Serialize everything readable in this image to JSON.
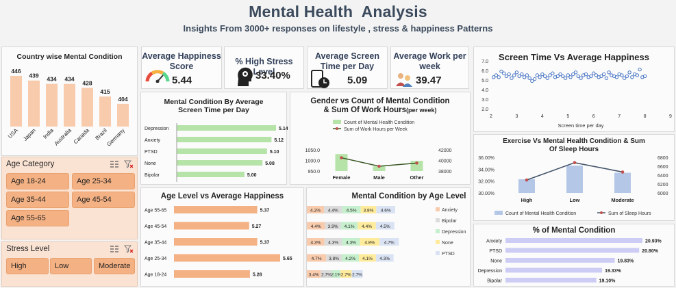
{
  "header": {
    "title": "Mental Health  Analysis",
    "subtitle": "Insights From 3000+ responses on lifestyle , stress & happiness Patterns"
  },
  "kpis": [
    {
      "label": "Average Happiness Score",
      "value": "5.44",
      "icon": "gauge-icon"
    },
    {
      "label": "% High Stress Level",
      "value": "33.40%",
      "icon": "head-gears-icon"
    },
    {
      "label": "Average Screen Time per Day",
      "value": "5.09",
      "icon": "tablet-clock-icon"
    },
    {
      "label": "Average Work per week",
      "value": "39.47",
      "icon": "workers-icon"
    }
  ],
  "colors": {
    "orange": "#f8cbad",
    "orange_dark": "#f4b183",
    "green": "#c6efce",
    "green_bar": "#b6e3a8",
    "blue": "#b4c7e7",
    "purple": "#ccccf5",
    "line": "#385723"
  },
  "slicers": {
    "age": {
      "title": "Age Category",
      "items": [
        "Age 18-24",
        "Age 25-34",
        "Age 35-44",
        "Age 45-54",
        "Age 55-65"
      ]
    },
    "stress": {
      "title": "Stress Level",
      "items": [
        "High",
        "Low",
        "Moderate"
      ]
    }
  },
  "chart_data": [
    {
      "id": "country",
      "type": "bar",
      "title": "Country wise Mental Condition",
      "categories": [
        "USA",
        "Japan",
        "India",
        "Australia",
        "Canada",
        "Brazil",
        "Germany"
      ],
      "values": [
        446,
        439,
        434,
        434,
        428,
        415,
        404
      ]
    },
    {
      "id": "screen_happy",
      "type": "scatter",
      "title": "Screen Time Vs Average Happiness",
      "xlabel": "Screen time per day",
      "xlim": [
        2,
        9
      ],
      "ylim": [
        2.0,
        7.0
      ],
      "xticks": [
        "2",
        "3",
        "4",
        "5",
        "6",
        "7",
        "8",
        "9"
      ],
      "yticks": [
        "2.0",
        "3.0",
        "4.0",
        "5.0",
        "6.0",
        "7.0"
      ],
      "x": [
        2.1,
        2.2,
        2.3,
        2.4,
        2.5,
        2.6,
        2.7,
        2.8,
        2.9,
        3.0,
        3.1,
        3.2,
        3.3,
        3.4,
        3.5,
        3.6,
        3.7,
        3.8,
        3.9,
        4.0,
        4.1,
        4.2,
        4.3,
        4.4,
        4.5,
        4.6,
        4.7,
        4.8,
        4.9,
        5.0,
        5.1,
        5.2,
        5.3,
        5.4,
        5.5,
        5.6,
        5.7,
        5.8,
        5.9,
        6.0,
        6.1,
        6.2,
        6.3,
        6.4,
        6.5,
        6.6,
        6.7,
        6.8,
        6.9,
        7.0,
        7.1,
        7.2,
        7.3,
        7.4,
        7.5,
        7.6,
        7.7,
        7.8,
        7.9,
        8.0
      ],
      "y": [
        5.3,
        5.5,
        5.3,
        5.9,
        5.7,
        5.4,
        5.6,
        5.2,
        5.5,
        5.8,
        5.4,
        5.6,
        5.3,
        5.5,
        5.2,
        4.9,
        5.1,
        5.5,
        5.3,
        5.6,
        5.4,
        5.2,
        5.5,
        5.7,
        5.3,
        5.4,
        5.6,
        5.4,
        5.2,
        5.5,
        5.3,
        5.6,
        5.8,
        5.4,
        5.2,
        5.5,
        5.6,
        5.3,
        5.4,
        5.7,
        5.5,
        5.3,
        5.4,
        5.6,
        5.2,
        5.8,
        5.5,
        5.4,
        5.3,
        5.6,
        5.5,
        5.2,
        5.4,
        5.8,
        5.3,
        5.6,
        5.5,
        6.1,
        5.3,
        5.4
      ]
    },
    {
      "id": "screen_condition",
      "type": "bar",
      "title": "Mental Condition By Average Screen Time per Day",
      "categories": [
        "Depression",
        "Anxiety",
        "PTSD",
        "None",
        "Bipolar"
      ],
      "values": [
        5.14,
        5.12,
        5.1,
        5.08,
        5.0
      ],
      "labels": [
        "5.14",
        "5.12",
        "5.10",
        "5.08",
        "5.00"
      ]
    },
    {
      "id": "gender",
      "type": "bar",
      "title": "Gender vs Count of Mental Condition & Sum Of Work  Hours",
      "title_suffix": "(per week)",
      "categories": [
        "Female",
        "Male",
        "Other"
      ],
      "series": [
        {
          "name": "Count of Mental Health Condition",
          "values": [
            1030,
            972,
            998
          ]
        },
        {
          "name": "Sum of Work Hours per Week",
          "values": [
            40500,
            38900,
            39500
          ]
        }
      ],
      "ylim": [
        950,
        1050
      ],
      "y2lim": [
        38000,
        42000
      ],
      "yticks": [
        "950.0",
        "1000.0",
        "1050.0"
      ],
      "y2ticks": [
        "38000",
        "40000",
        "42000"
      ]
    },
    {
      "id": "exercise",
      "type": "bar",
      "title": "Exercise Vs Mental Health Condition & Sum Of Sleep Hours",
      "categories": [
        "High",
        "Low",
        "Moderate"
      ],
      "series": [
        {
          "name": "Count of Mental Health Condition",
          "values": [
            32.3,
            34.6,
            33.4
          ]
        },
        {
          "name": "Sum of Sleep Hours",
          "values": [
            6290,
            6680,
            6470
          ]
        }
      ],
      "ylim": [
        30,
        36
      ],
      "y2lim": [
        6000,
        6800
      ],
      "yticks": [
        "30.00%",
        "32.00%",
        "34.00%",
        "36.00%"
      ],
      "y2ticks": [
        "6000",
        "6200",
        "6400",
        "6600",
        "6800"
      ]
    },
    {
      "id": "age_happy",
      "type": "bar",
      "title": "Age Level vs Average Happiness",
      "categories": [
        "Age 55-65",
        "Age 45-54",
        "Age 35-44",
        "Age 25-34",
        "Age 18-24"
      ],
      "values": [
        5.37,
        5.27,
        5.37,
        5.65,
        5.28
      ],
      "labels": [
        "5.37",
        "5.27",
        "5.37",
        "5.65",
        "5.28"
      ]
    },
    {
      "id": "age_condition",
      "type": "bar",
      "title": "Mental Condition by Age Level",
      "rows": [
        "Age 55-65",
        "Age 45-54",
        "Age 35-44",
        "Age 25-34",
        "Age 18-24"
      ],
      "series": [
        {
          "name": "Anxiety",
          "values": [
            4.2,
            4.4,
            4.3,
            4.7,
            3.4
          ],
          "labels": [
            "4.2%",
            "4.4%",
            "4.3%",
            "4.7%",
            "3.4%"
          ]
        },
        {
          "name": "Bipolar",
          "values": [
            4.4,
            3.9,
            4.3,
            3.8,
            2.7
          ],
          "labels": [
            "4.4%",
            "3.9%",
            "4.3%",
            "3.8%",
            "2.7%"
          ]
        },
        {
          "name": "Depression",
          "values": [
            4.5,
            4.1,
            4.3,
            4.2,
            2.1
          ],
          "labels": [
            "4.5%",
            "4.1%",
            "4.3%",
            "4.2%",
            "2.1%"
          ]
        },
        {
          "name": "None",
          "values": [
            3.8,
            4.4,
            4.8,
            4.1,
            2.7
          ],
          "labels": [
            "3.8%",
            "4.4%",
            "4.8%",
            "4.1%",
            "2.7%"
          ]
        },
        {
          "name": "PTSD",
          "values": [
            4.6,
            4.5,
            4.7,
            4.3,
            2.7
          ],
          "labels": [
            "4.6%",
            "4.5%",
            "4.7%",
            "4.3%",
            "2.7%"
          ]
        }
      ]
    },
    {
      "id": "pct_condition",
      "type": "bar",
      "title": "% of Mental Condition",
      "categories": [
        "Anxiety",
        "PTSD",
        "None",
        "Depression",
        "Bipolar"
      ],
      "values": [
        20.93,
        20.8,
        19.83,
        19.33,
        19.1
      ],
      "labels": [
        "20.93%",
        "20.80%",
        "19.83%",
        "19.33%",
        "19.10%"
      ]
    }
  ]
}
